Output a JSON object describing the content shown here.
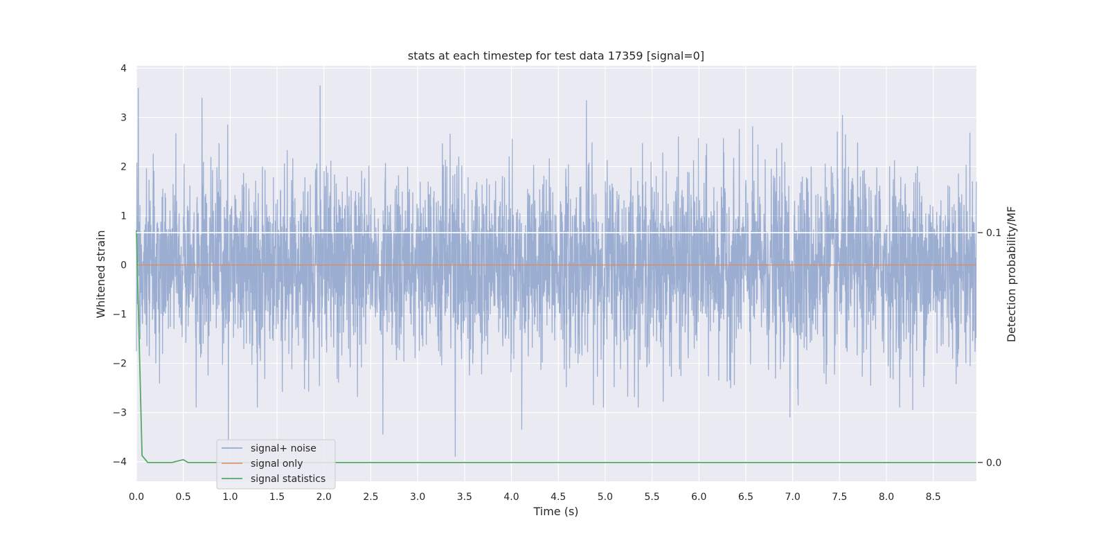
{
  "chart_data": {
    "type": "line",
    "title": "stats at each timestep for test data 17359 [signal=0]",
    "xlabel": "Time (s)",
    "ylabel": "Whitened strain",
    "y2label": "Detection probability/MF",
    "xlim": [
      0,
      8.96
    ],
    "ylim": [
      -4.4,
      4.05
    ],
    "y2lim": [
      -0.0082,
      0.1726
    ],
    "xticks": [
      "0.0",
      "0.5",
      "1.0",
      "1.5",
      "2.0",
      "2.5",
      "3.0",
      "3.5",
      "4.0",
      "4.5",
      "5.0",
      "5.5",
      "6.0",
      "6.5",
      "7.0",
      "7.5",
      "8.0",
      "8.5"
    ],
    "yticks": [
      "−4",
      "−3",
      "−2",
      "−1",
      "0",
      "1",
      "2",
      "3",
      "4"
    ],
    "y2ticks": [
      "0.0",
      "0.1"
    ],
    "grid": true,
    "legend_position": "lower-left",
    "series": [
      {
        "name": "signal+ noise",
        "color": "#4c72b0",
        "axis": "left",
        "note_values": "whitened noise, samples approx. N(0,1), visible extremes",
        "peaks": [
          {
            "x": 0.02,
            "y": 3.6
          },
          {
            "x": 0.7,
            "y": 3.4
          },
          {
            "x": 1.96,
            "y": 3.65
          },
          {
            "x": 4.8,
            "y": 3.35
          },
          {
            "x": 7.53,
            "y": 3.05
          },
          {
            "x": 0.98,
            "y": -3.6
          },
          {
            "x": 2.63,
            "y": -3.45
          },
          {
            "x": 3.4,
            "y": -3.9
          },
          {
            "x": 4.11,
            "y": -3.35
          },
          {
            "x": 6.97,
            "y": -3.1
          },
          {
            "x": 8.28,
            "y": -2.95
          }
        ]
      },
      {
        "name": "signal only",
        "color": "#dd8452",
        "axis": "left",
        "x": [
          0,
          8.96
        ],
        "y": [
          0,
          0
        ]
      },
      {
        "name": "signal statistics",
        "color": "#55a868",
        "axis": "right",
        "x": [
          0.0,
          0.06,
          0.12,
          0.38,
          0.5,
          0.55,
          8.96
        ],
        "y": [
          0.101,
          0.003,
          0.0,
          0.0,
          0.0012,
          0.0,
          0.0
        ]
      }
    ],
    "hline_right_axis": 0.1
  }
}
